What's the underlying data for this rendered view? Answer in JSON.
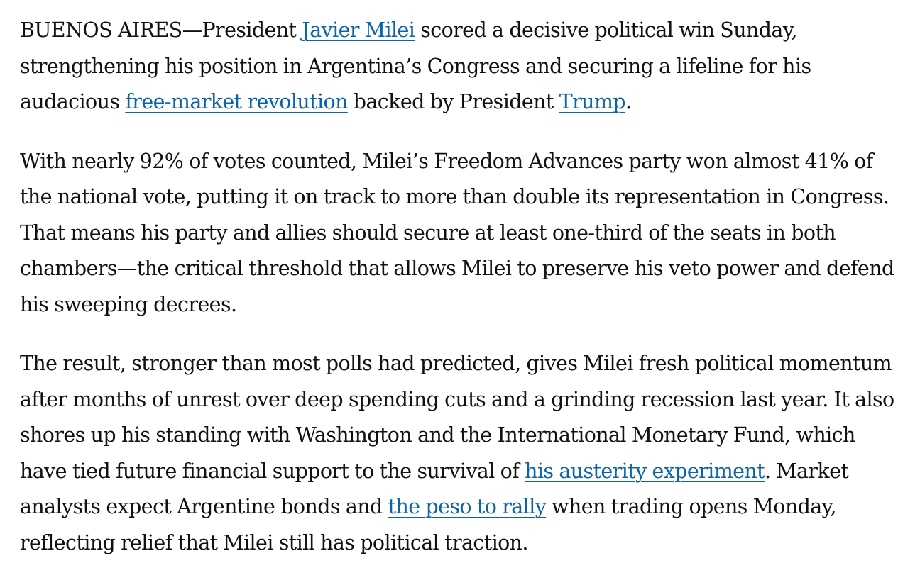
{
  "article": {
    "paragraphs": [
      {
        "segments": [
          {
            "type": "text",
            "text": "BUENOS AIRES—President "
          },
          {
            "type": "link",
            "text": "Javier Milei"
          },
          {
            "type": "text",
            "text": " scored a decisive political win Sunday, strengthening his position in Argentina’s Congress and securing a lifeline for his audacious "
          },
          {
            "type": "link",
            "text": "free-market revolution"
          },
          {
            "type": "text",
            "text": " backed by President "
          },
          {
            "type": "link",
            "text": "Trump"
          },
          {
            "type": "text",
            "text": "."
          }
        ]
      },
      {
        "segments": [
          {
            "type": "text",
            "text": "With nearly 92% of votes counted, Milei’s Freedom Advances party won almost 41% of the national vote, putting it on track to more than double its representation in Congress. That means his party and allies should secure at least one-third of the seats in both chambers—the critical threshold that allows Milei to preserve his veto power and defend his sweeping decrees."
          }
        ]
      },
      {
        "segments": [
          {
            "type": "text",
            "text": "The result, stronger than most polls had predicted, gives Milei fresh political momentum after months of unrest over deep spending cuts and a grinding recession last year. It also shores up his standing with Washington and the International Monetary Fund, which have tied future financial support to the survival of "
          },
          {
            "type": "link",
            "text": "his austerity experiment"
          },
          {
            "type": "text",
            "text": ". Market analysts expect Argentine bonds and "
          },
          {
            "type": "link",
            "text": "the peso to rally"
          },
          {
            "type": "text",
            "text": " when trading opens Monday, reflecting relief that Milei still has political traction."
          }
        ]
      }
    ]
  },
  "colors": {
    "text": "#111111",
    "link": "#0b63a8",
    "background": "#ffffff"
  }
}
